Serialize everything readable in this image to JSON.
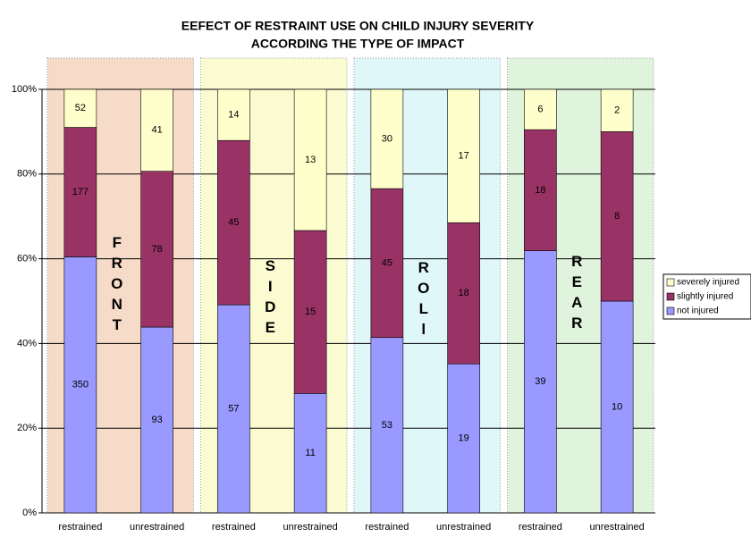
{
  "chart_data": {
    "type": "stacked_percent",
    "title": "EEFECT OF RESTRAINT USE ON CHILD INJURY SEVERITY",
    "subtitle": "ACCORDING THE TYPE OF IMPACT",
    "categories": [
      "restrained",
      "unrestrained",
      "restrained",
      "unrestrained",
      "restrained",
      "unrestrained",
      "restrained",
      "unrestrained"
    ],
    "groups": [
      "FRONT",
      "SIDE",
      "ROLl",
      "REAR"
    ],
    "group_colors": [
      "#f6dcc8",
      "#fbfbd2",
      "#dff7f8",
      "#e0f3dc"
    ],
    "series": [
      {
        "name": "not injured",
        "color": "#9999ff",
        "values": [
          350,
          93,
          57,
          11,
          53,
          19,
          39,
          10
        ]
      },
      {
        "name": "slightly injured",
        "color": "#993366",
        "values": [
          177,
          78,
          45,
          15,
          45,
          18,
          18,
          8
        ]
      },
      {
        "name": "severely injured",
        "color": "#ffffcc",
        "values": [
          52,
          41,
          14,
          13,
          30,
          17,
          6,
          2
        ]
      }
    ],
    "ylim": [
      0,
      100
    ],
    "yticks": [
      {
        "value": 0,
        "label": "0%"
      },
      {
        "value": 20,
        "label": "20%"
      },
      {
        "value": 40,
        "label": "40%"
      },
      {
        "value": 60,
        "label": "60%"
      },
      {
        "value": 80,
        "label": "80%"
      },
      {
        "value": 100,
        "label": "100%"
      }
    ],
    "grid": true,
    "legend": "right"
  }
}
